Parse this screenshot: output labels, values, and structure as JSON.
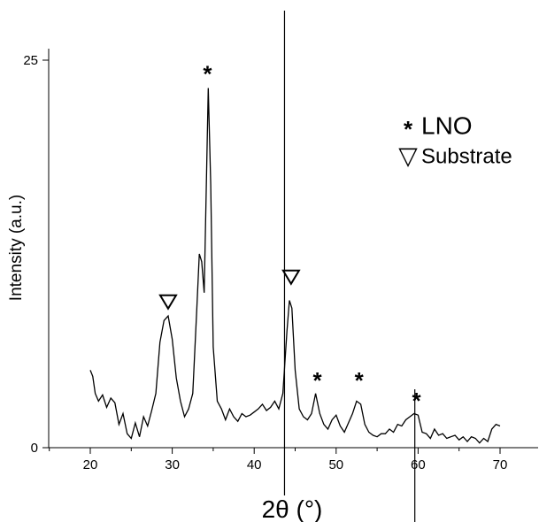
{
  "chart_data": {
    "type": "line",
    "title": "",
    "xlabel": "2θ (°)",
    "ylabel": "Intensity (a.u.)",
    "xlim": [
      15,
      75
    ],
    "ylim": [
      0,
      26
    ],
    "x_ticks": [
      20,
      30,
      40,
      50,
      60,
      70
    ],
    "y_ticks": [
      0,
      25
    ],
    "grid": false,
    "legend": {
      "placement": "top-right",
      "entries": [
        {
          "marker": "*",
          "label": "LNO"
        },
        {
          "marker": "▽",
          "label": "Substrate"
        }
      ]
    },
    "series": [
      {
        "x": [
          20.0,
          20.3,
          20.6,
          21.0,
          21.5,
          22.0,
          22.5,
          23.0,
          23.5,
          24.0,
          24.5,
          25.0,
          25.5,
          26.0,
          26.5,
          27.0,
          27.5,
          28.0,
          28.5,
          29.0,
          29.5,
          30.0,
          30.5,
          31.0,
          31.5,
          32.0,
          32.5,
          33.0,
          33.3,
          33.6,
          33.9,
          34.2,
          34.4,
          34.7,
          35.0,
          35.5,
          36.0,
          36.5,
          37.0,
          37.5,
          38.0,
          38.5,
          39.0,
          39.5,
          40.0,
          40.5,
          41.0,
          41.5,
          42.0,
          42.5,
          43.0,
          43.5,
          44.0,
          44.3,
          44.6,
          45.0,
          45.5,
          46.0,
          46.5,
          47.0,
          47.5,
          48.0,
          48.5,
          49.0,
          49.5,
          50.0,
          50.5,
          51.0,
          51.5,
          52.0,
          52.5,
          53.0,
          53.5,
          54.0,
          54.5,
          55.0,
          55.5,
          56.0,
          56.5,
          57.0,
          57.5,
          58.0,
          58.5,
          59.0,
          59.5,
          60.0,
          60.5,
          61.0,
          61.5,
          62.0,
          62.5,
          63.0,
          63.5,
          64.0,
          64.5,
          65.0,
          65.5,
          66.0,
          66.5,
          67.0,
          67.5,
          68.0,
          68.5,
          69.0,
          69.5,
          70.0
        ],
        "y": [
          5.0,
          4.6,
          3.5,
          3.0,
          3.4,
          2.6,
          3.2,
          2.9,
          1.5,
          2.2,
          0.9,
          0.6,
          1.6,
          0.7,
          2.0,
          1.4,
          2.4,
          3.5,
          6.8,
          8.2,
          8.5,
          7.0,
          4.5,
          3.0,
          2.0,
          2.5,
          3.5,
          9.0,
          12.5,
          12.0,
          10.0,
          18.0,
          23.2,
          17.0,
          6.5,
          3.0,
          2.5,
          1.8,
          2.5,
          2.0,
          1.7,
          2.2,
          2.0,
          2.1,
          2.3,
          2.5,
          2.8,
          2.4,
          2.6,
          3.0,
          2.5,
          3.5,
          7.5,
          9.5,
          9.0,
          5.0,
          2.5,
          2.0,
          1.8,
          2.2,
          3.5,
          2.2,
          1.5,
          1.2,
          1.8,
          2.1,
          1.4,
          1.0,
          1.6,
          2.2,
          3.0,
          2.8,
          1.5,
          1.0,
          0.8,
          0.7,
          0.9,
          0.9,
          1.2,
          1.0,
          1.5,
          1.4,
          1.8,
          2.0,
          2.2,
          2.1,
          1.0,
          0.9,
          0.6,
          1.2,
          0.8,
          0.9,
          0.6,
          0.7,
          0.8,
          0.5,
          0.7,
          0.4,
          0.7,
          0.6,
          0.3,
          0.6,
          0.4,
          1.2,
          1.5,
          1.4
        ]
      }
    ],
    "annotations": [
      {
        "marker": "*",
        "x": 34.3,
        "y": 24.3
      },
      {
        "marker": "▽",
        "x": 29.5,
        "y": 9.4
      },
      {
        "marker": "▽",
        "x": 44.5,
        "y": 11.0
      },
      {
        "marker": "*",
        "x": 47.7,
        "y": 4.5
      },
      {
        "marker": "*",
        "x": 52.8,
        "y": 4.5
      },
      {
        "marker": "*",
        "x": 59.8,
        "y": 3.2
      }
    ],
    "reference_lines": [
      43.7,
      59.6
    ]
  }
}
